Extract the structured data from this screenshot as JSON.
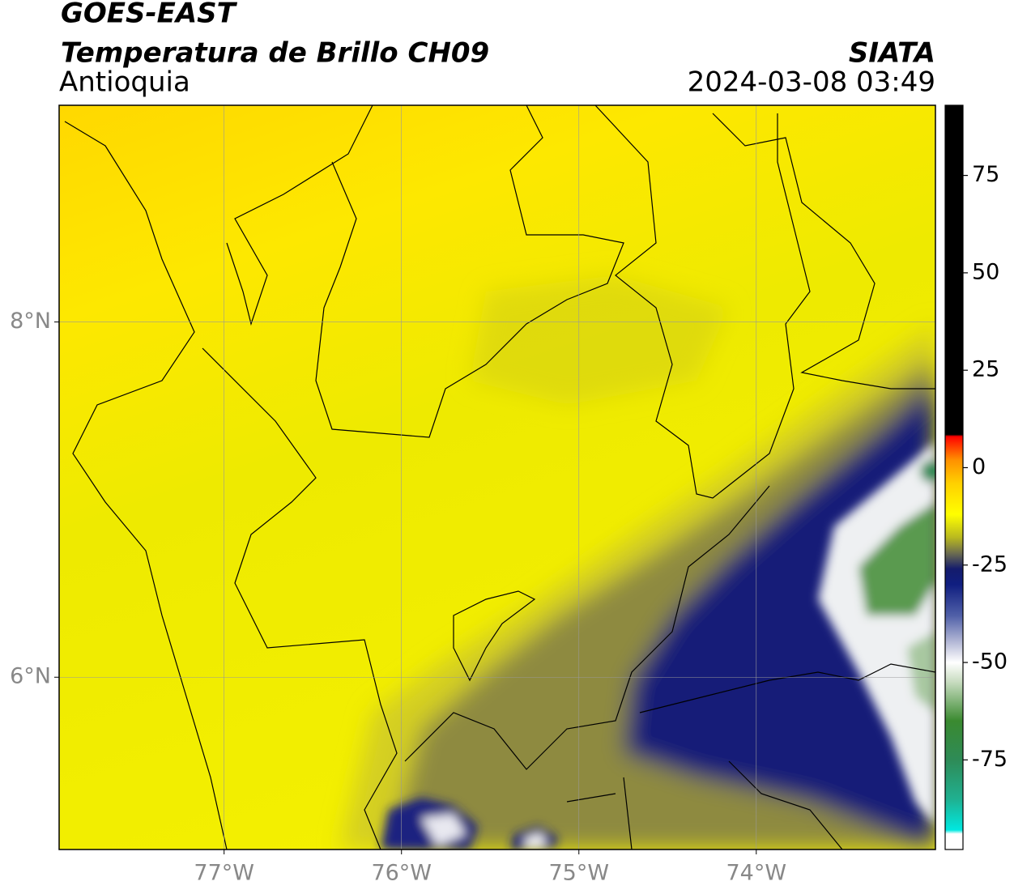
{
  "chart_data": {
    "type": "map",
    "title": "GOES-EAST",
    "subtitle": "Temperatura de Brillo CH09",
    "region": "Antioquia",
    "source": "SIATA",
    "datetime": "2024-03-08 03:49",
    "xlim": [
      -77.93,
      -72.99
    ],
    "ylim": [
      5.03,
      9.22
    ],
    "xticks": [
      {
        "value": -77,
        "label": "77°W"
      },
      {
        "value": -76,
        "label": "76°W"
      },
      {
        "value": -75,
        "label": "75°W"
      },
      {
        "value": -74,
        "label": "74°W"
      }
    ],
    "yticks": [
      {
        "value": 6,
        "label": "6°N"
      },
      {
        "value": 8,
        "label": "8°N"
      }
    ],
    "grid": true,
    "colorbar": {
      "clim": [
        -98,
        93
      ],
      "ticks": [
        -75,
        -50,
        -25,
        0,
        25,
        50,
        75
      ],
      "colormap": [
        {
          "value": -98,
          "color": "#ffffff"
        },
        {
          "value": -94,
          "color": "#ffffff"
        },
        {
          "value": -93,
          "color": "#00e8e0"
        },
        {
          "value": -85,
          "color": "#20b090"
        },
        {
          "value": -75,
          "color": "#2e8b57"
        },
        {
          "value": -65,
          "color": "#3a8a30"
        },
        {
          "value": -55,
          "color": "#c8dcc0"
        },
        {
          "value": -50,
          "color": "#ffffff"
        },
        {
          "value": -45,
          "color": "#b8bcd8"
        },
        {
          "value": -38,
          "color": "#5060a8"
        },
        {
          "value": -30,
          "color": "#101e80"
        },
        {
          "value": -26,
          "color": "#141c6c"
        },
        {
          "value": -22,
          "color": "#6c6c50"
        },
        {
          "value": -18,
          "color": "#b8b820"
        },
        {
          "value": -12,
          "color": "#ffff00"
        },
        {
          "value": -4,
          "color": "#ffd000"
        },
        {
          "value": 2,
          "color": "#ff9000"
        },
        {
          "value": 8,
          "color": "#ff0000"
        },
        {
          "value": 8.5,
          "color": "#000000"
        },
        {
          "value": 93,
          "color": "#000000"
        }
      ]
    }
  }
}
